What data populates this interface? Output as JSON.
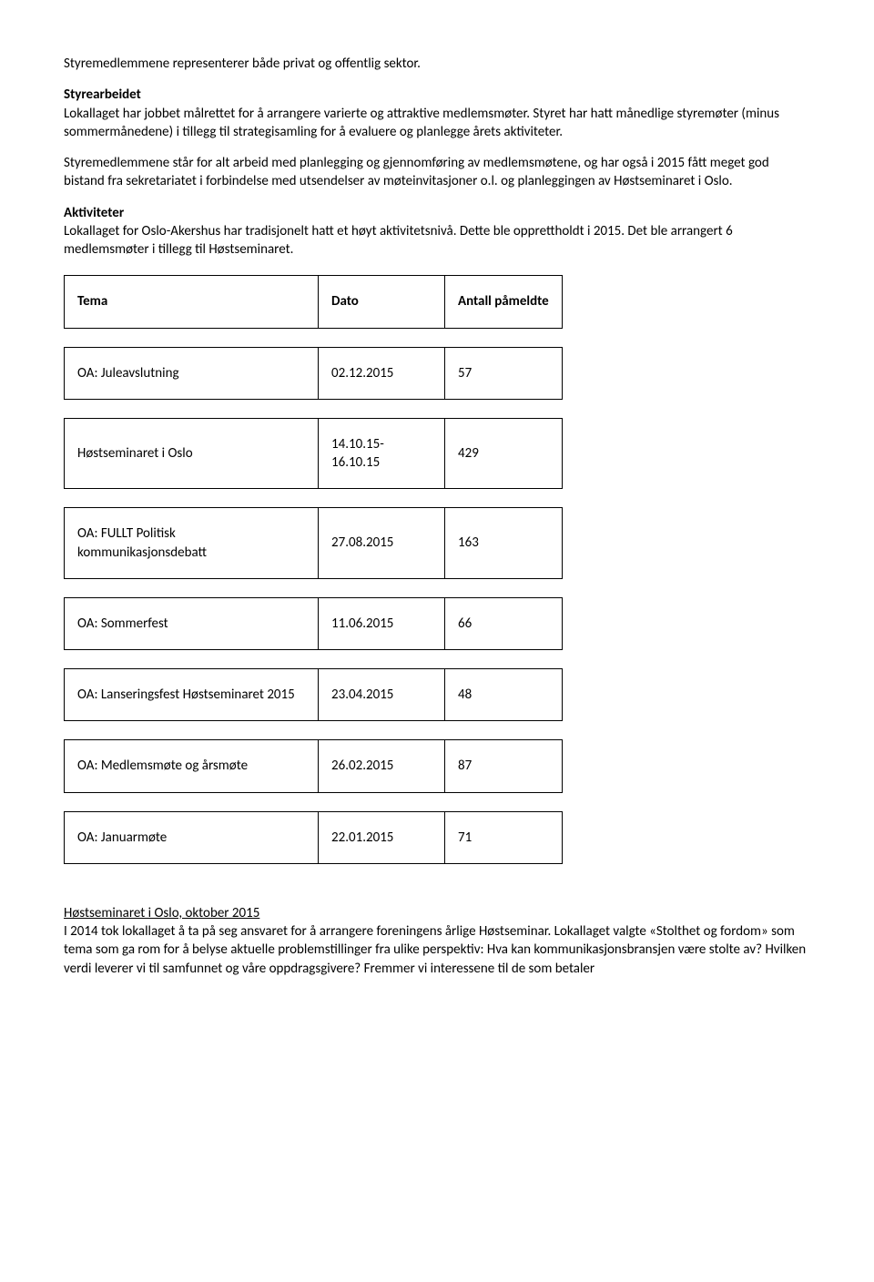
{
  "para1": "Styremedlemmene representerer både privat og offentlig sektor.",
  "heading1": "Styrearbeidet",
  "para2": "Lokallaget har jobbet målrettet for å arrangere varierte og attraktive medlemsmøter. Styret har hatt månedlige styremøter (minus sommermånedene) i tillegg til strategisamling for å evaluere og planlegge årets aktiviteter.",
  "para3": "Styremedlemmene står for alt arbeid med planlegging og gjennomføring av medlemsmøtene, og har også i 2015 fått meget god bistand fra sekretariatet i forbindelse med utsendelser av møteinvitasjoner o.l. og planleggingen av Høstseminaret i Oslo.",
  "heading2": "Aktiviteter",
  "para4": "Lokallaget for Oslo-Akershus har tradisjonelt hatt et høyt aktivitetsnivå. Dette ble opprettholdt i 2015. Det ble arrangert 6 medlemsmøter i tillegg til Høstseminaret.",
  "table": {
    "headers": {
      "tema": "Tema",
      "dato": "Dato",
      "antall": "Antall påmeldte"
    },
    "rows": [
      {
        "tema": "OA: Juleavslutning",
        "dato": "02.12.2015",
        "antall": "57"
      },
      {
        "tema": "Høstseminaret i Oslo",
        "dato": "14.10.15-16.10.15",
        "antall": "429"
      },
      {
        "tema": "OA: FULLT Politisk kommunikasjonsdebatt",
        "dato": "27.08.2015",
        "antall": "163"
      },
      {
        "tema": "OA: Sommerfest",
        "dato": "11.06.2015",
        "antall": "66"
      },
      {
        "tema": "OA: Lanseringsfest Høstseminaret 2015",
        "dato": "23.04.2015",
        "antall": "48"
      },
      {
        "tema": "OA: Medlemsmøte og årsmøte",
        "dato": "26.02.2015",
        "antall": "87"
      },
      {
        "tema": "OA: Januarmøte",
        "dato": "22.01.2015",
        "antall": "71"
      }
    ]
  },
  "heading3": "Høstseminaret i Oslo, oktober 2015",
  "para5": "I 2014 tok lokallaget å ta på seg ansvaret for å arrangere foreningens årlige Høstseminar. Lokallaget valgte «Stolthet og fordom» som tema som ga rom for å belyse aktuelle problemstillinger fra ulike perspektiv: Hva kan kommunikasjonsbransjen være stolte av? Hvilken verdi leverer vi til samfunnet og våre oppdragsgivere? Fremmer vi interessene til de som betaler"
}
